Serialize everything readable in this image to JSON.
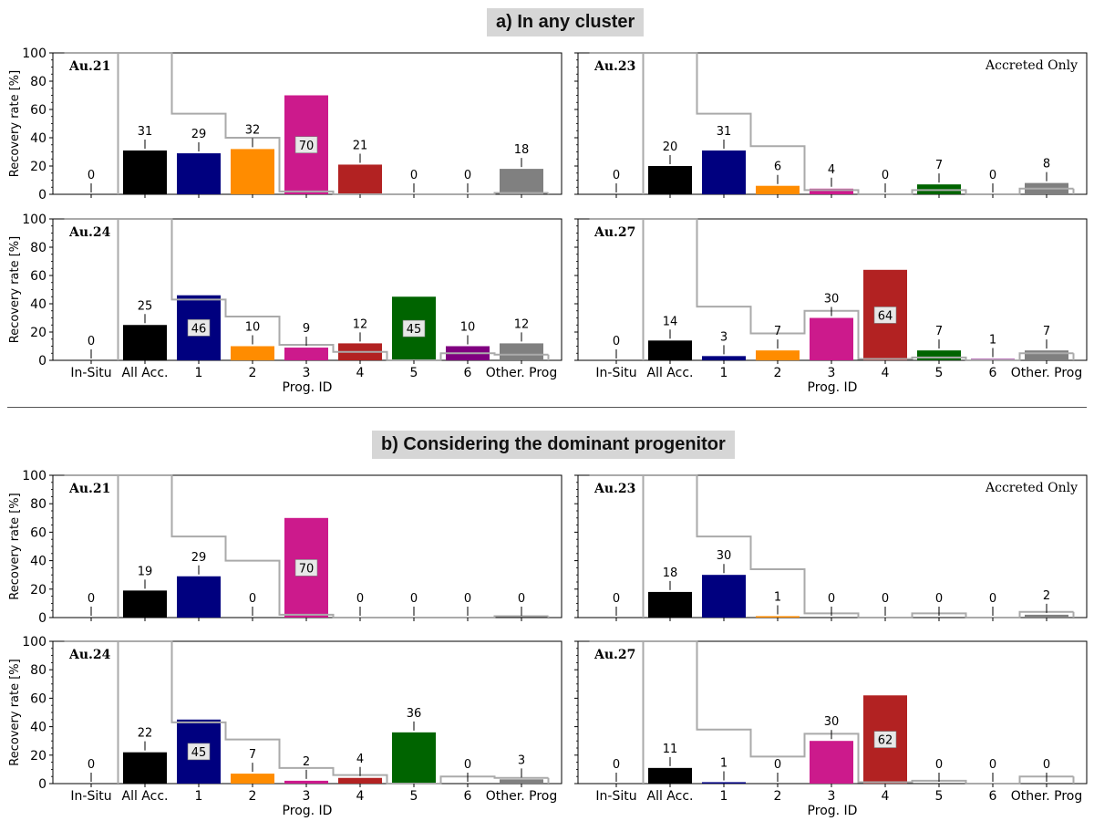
{
  "sections": [
    {
      "title": "a) In any cluster"
    },
    {
      "title": "b) Considering the dominant progenitor"
    }
  ],
  "colors": {
    "All Acc.": "#000000",
    "1": "#00007f",
    "2": "#ff8c00",
    "3": "#cc1a8c",
    "4": "#b22222",
    "5": "#006400",
    "6": "#800080",
    "Other. Prog": "#808080",
    "step": "#aaaaaa"
  },
  "chart_data": [
    {
      "type": "bar",
      "section": "a",
      "panel": "Au.21",
      "annotation": "",
      "ylabel": "Recovery rate [%]",
      "xlabel": "",
      "ylim": [
        0,
        100
      ],
      "yticks": [
        0,
        20,
        40,
        60,
        80,
        100
      ],
      "categories": [
        "In-Situ",
        "All Acc.",
        "1",
        "2",
        "3",
        "4",
        "5",
        "6",
        "Other. Prog"
      ],
      "values": [
        0,
        31,
        29,
        32,
        70,
        21,
        0,
        0,
        18
      ],
      "inside_labels": [
        "3"
      ],
      "step_values": [
        100,
        100,
        57,
        40,
        2,
        0,
        0,
        0,
        1
      ]
    },
    {
      "type": "bar",
      "section": "a",
      "panel": "Au.23",
      "annotation": "Accreted Only",
      "ylabel": "",
      "xlabel": "",
      "ylim": [
        0,
        100
      ],
      "yticks": [
        0,
        20,
        40,
        60,
        80,
        100
      ],
      "categories": [
        "In-Situ",
        "All Acc.",
        "1",
        "2",
        "3",
        "4",
        "5",
        "6",
        "Other. Prog"
      ],
      "values": [
        0,
        20,
        31,
        6,
        4,
        0,
        7,
        0,
        8
      ],
      "inside_labels": [],
      "step_values": [
        100,
        100,
        57,
        34,
        3,
        0,
        3,
        0,
        4
      ]
    },
    {
      "type": "bar",
      "section": "a",
      "panel": "Au.24",
      "annotation": "",
      "ylabel": "Recovery rate [%]",
      "xlabel": "Prog. ID",
      "ylim": [
        0,
        100
      ],
      "yticks": [
        0,
        20,
        40,
        60,
        80,
        100
      ],
      "categories": [
        "In-Situ",
        "All Acc.",
        "1",
        "2",
        "3",
        "4",
        "5",
        "6",
        "Other. Prog"
      ],
      "values": [
        0,
        25,
        46,
        10,
        9,
        12,
        45,
        10,
        12
      ],
      "inside_labels": [
        "1",
        "5"
      ],
      "step_values": [
        100,
        100,
        43,
        31,
        11,
        6,
        0,
        5,
        4
      ]
    },
    {
      "type": "bar",
      "section": "a",
      "panel": "Au.27",
      "annotation": "",
      "ylabel": "",
      "xlabel": "Prog. ID",
      "ylim": [
        0,
        100
      ],
      "yticks": [
        0,
        20,
        40,
        60,
        80,
        100
      ],
      "categories": [
        "In-Situ",
        "All Acc.",
        "1",
        "2",
        "3",
        "4",
        "5",
        "6",
        "Other. Prog"
      ],
      "values": [
        0,
        14,
        3,
        7,
        30,
        64,
        7,
        1,
        7
      ],
      "inside_labels": [
        "4"
      ],
      "step_values": [
        100,
        100,
        38,
        19,
        35,
        1,
        2,
        0,
        5
      ]
    },
    {
      "type": "bar",
      "section": "b",
      "panel": "Au.21",
      "annotation": "",
      "ylabel": "Recovery rate [%]",
      "xlabel": "",
      "ylim": [
        0,
        100
      ],
      "yticks": [
        0,
        20,
        40,
        60,
        80,
        100
      ],
      "categories": [
        "In-Situ",
        "All Acc.",
        "1",
        "2",
        "3",
        "4",
        "5",
        "6",
        "Other. Prog"
      ],
      "values": [
        0,
        19,
        29,
        0,
        70,
        0,
        0,
        0,
        0
      ],
      "inside_labels": [
        "3"
      ],
      "step_values": [
        100,
        100,
        57,
        40,
        2,
        0,
        0,
        0,
        1
      ]
    },
    {
      "type": "bar",
      "section": "b",
      "panel": "Au.23",
      "annotation": "Accreted Only",
      "ylabel": "",
      "xlabel": "",
      "ylim": [
        0,
        100
      ],
      "yticks": [
        0,
        20,
        40,
        60,
        80,
        100
      ],
      "categories": [
        "In-Situ",
        "All Acc.",
        "1",
        "2",
        "3",
        "4",
        "5",
        "6",
        "Other. Prog"
      ],
      "values": [
        0,
        18,
        30,
        1,
        0,
        0,
        0,
        0,
        2
      ],
      "inside_labels": [],
      "step_values": [
        100,
        100,
        57,
        34,
        3,
        0,
        3,
        0,
        4
      ]
    },
    {
      "type": "bar",
      "section": "b",
      "panel": "Au.24",
      "annotation": "",
      "ylabel": "Recovery rate [%]",
      "xlabel": "Prog. ID",
      "ylim": [
        0,
        100
      ],
      "yticks": [
        0,
        20,
        40,
        60,
        80,
        100
      ],
      "categories": [
        "In-Situ",
        "All Acc.",
        "1",
        "2",
        "3",
        "4",
        "5",
        "6",
        "Other. Prog"
      ],
      "values": [
        0,
        22,
        45,
        7,
        2,
        4,
        36,
        0,
        3
      ],
      "inside_labels": [
        "1"
      ],
      "step_values": [
        100,
        100,
        43,
        31,
        11,
        6,
        0,
        5,
        4
      ]
    },
    {
      "type": "bar",
      "section": "b",
      "panel": "Au.27",
      "annotation": "",
      "ylabel": "",
      "xlabel": "Prog. ID",
      "ylim": [
        0,
        100
      ],
      "yticks": [
        0,
        20,
        40,
        60,
        80,
        100
      ],
      "categories": [
        "In-Situ",
        "All Acc.",
        "1",
        "2",
        "3",
        "4",
        "5",
        "6",
        "Other. Prog"
      ],
      "values": [
        0,
        11,
        1,
        0,
        30,
        62,
        0,
        0,
        0
      ],
      "inside_labels": [
        "4"
      ],
      "step_values": [
        100,
        100,
        38,
        19,
        35,
        1,
        2,
        0,
        5
      ]
    }
  ]
}
